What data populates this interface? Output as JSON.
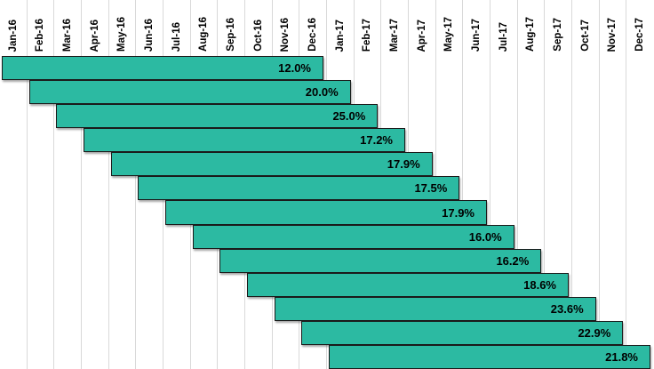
{
  "chart_data": {
    "type": "bar",
    "subtype": "rolling-12-month-window-staircase",
    "title": "",
    "xlabel": "",
    "ylabel": "",
    "legend": "none",
    "grid": "vertical",
    "columns": 24,
    "window_months": 12,
    "months": [
      "Jan-16",
      "Feb-16",
      "Mar-16",
      "Apr-16",
      "May-16",
      "Jun-16",
      "Jul-16",
      "Aug-16",
      "Sep-16",
      "Oct-16",
      "Nov-16",
      "Dec-16",
      "Jan-17",
      "Feb-17",
      "Mar-17",
      "Apr-17",
      "May-17",
      "Jun-17",
      "Jul-17",
      "Aug-17",
      "Sep-17",
      "Oct-17",
      "Nov-17",
      "Dec-17"
    ],
    "bars": [
      {
        "start": "Jan-16",
        "end": "Dec-16",
        "value": 12.0,
        "label": "12.0%"
      },
      {
        "start": "Feb-16",
        "end": "Jan-17",
        "value": 20.0,
        "label": "20.0%"
      },
      {
        "start": "Mar-16",
        "end": "Feb-17",
        "value": 25.0,
        "label": "25.0%"
      },
      {
        "start": "Apr-16",
        "end": "Mar-17",
        "value": 17.2,
        "label": "17.2%"
      },
      {
        "start": "May-16",
        "end": "Apr-17",
        "value": 17.9,
        "label": "17.9%"
      },
      {
        "start": "Jun-16",
        "end": "May-17",
        "value": 17.5,
        "label": "17.5%"
      },
      {
        "start": "Jul-16",
        "end": "Jun-17",
        "value": 17.9,
        "label": "17.9%"
      },
      {
        "start": "Aug-16",
        "end": "Jul-17",
        "value": 16.0,
        "label": "16.0%"
      },
      {
        "start": "Sep-16",
        "end": "Aug-17",
        "value": 16.2,
        "label": "16.2%"
      },
      {
        "start": "Oct-16",
        "end": "Sep-17",
        "value": 18.6,
        "label": "18.6%"
      },
      {
        "start": "Nov-16",
        "end": "Oct-17",
        "value": 23.6,
        "label": "23.6%"
      },
      {
        "start": "Dec-16",
        "end": "Nov-17",
        "value": 22.9,
        "label": "22.9%"
      },
      {
        "start": "Jan-17",
        "end": "Dec-17",
        "value": 21.8,
        "label": "21.8%"
      }
    ],
    "colors": {
      "bar_fill": "#2cbaa2",
      "bar_border": "#1b1b1b",
      "gridline": "#d9d9d9",
      "background": "#ffffff",
      "label_text": "#000000"
    }
  }
}
